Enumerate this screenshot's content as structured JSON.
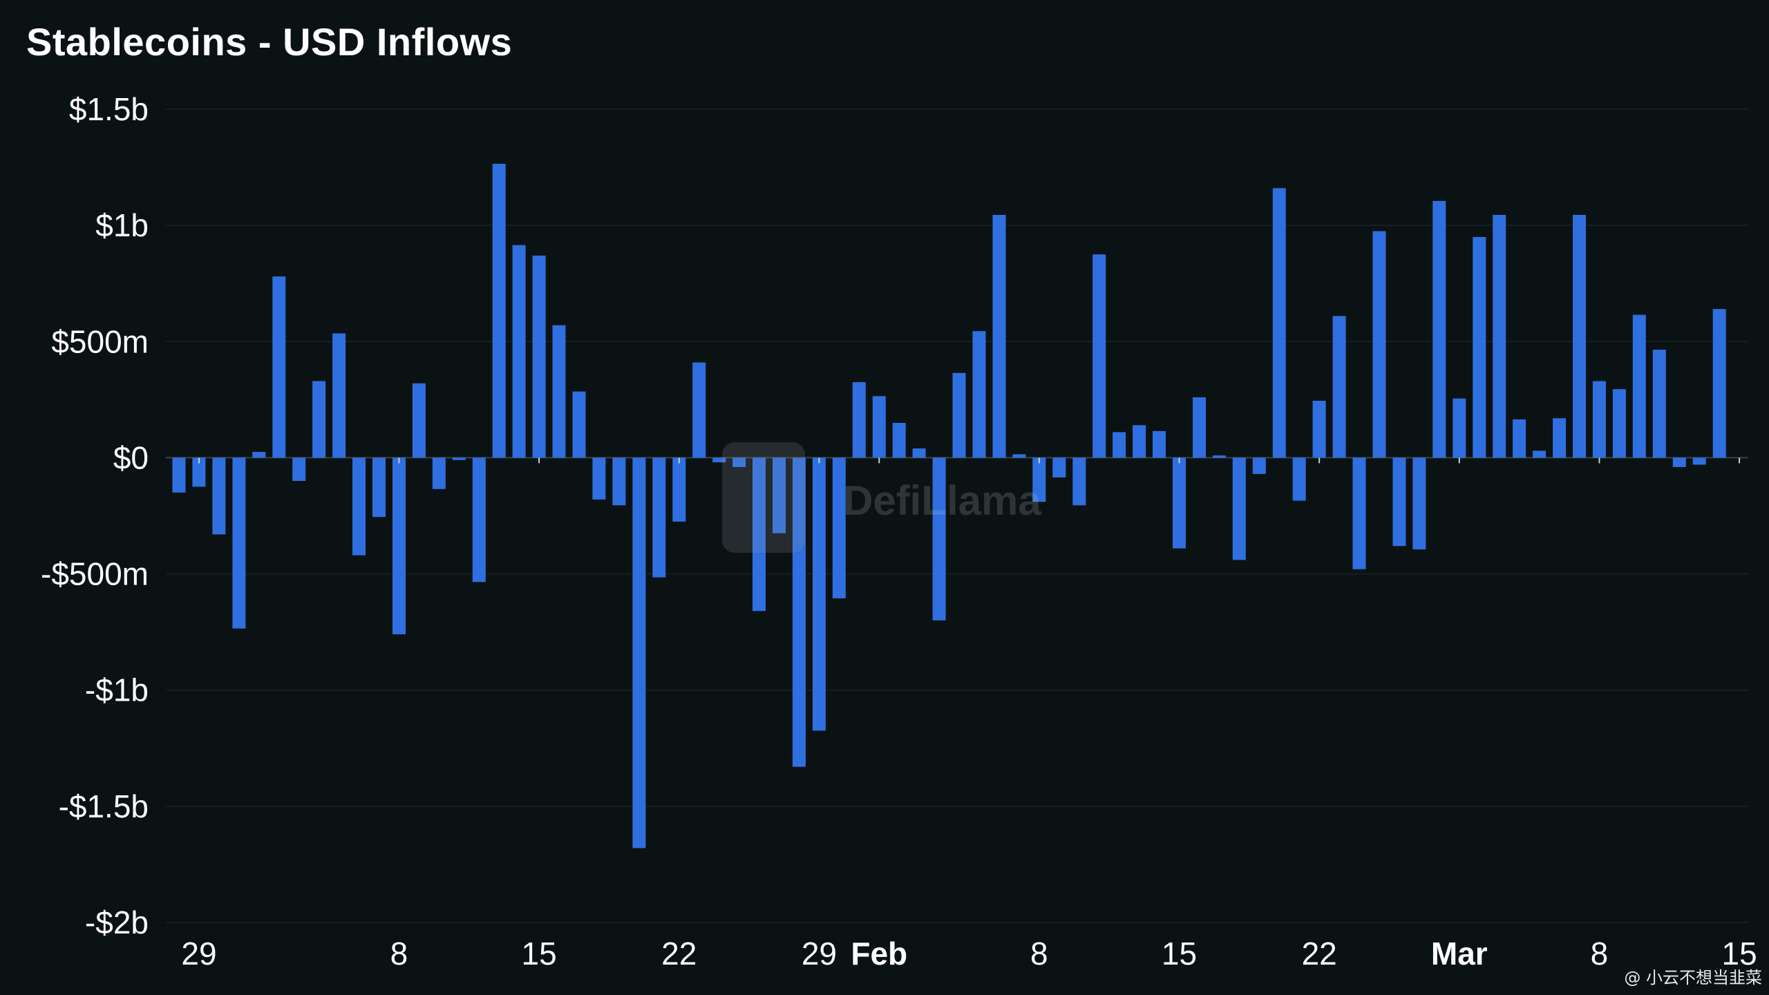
{
  "chart_data": {
    "type": "bar",
    "title": "Stablecoins - USD Inflows",
    "xlabel": "",
    "ylabel": "",
    "ylim": [
      -2000,
      1500
    ],
    "unit": "million USD",
    "yticks": [
      {
        "value": 1500,
        "label": "$1.5b"
      },
      {
        "value": 1000,
        "label": "$1b"
      },
      {
        "value": 500,
        "label": "$500m"
      },
      {
        "value": 0,
        "label": "$0"
      },
      {
        "value": -500,
        "label": "-$500m"
      },
      {
        "value": -1000,
        "label": "-$1b"
      },
      {
        "value": -1500,
        "label": "-$1.5b"
      },
      {
        "value": -2000,
        "label": "-$2b"
      }
    ],
    "xticks": [
      {
        "label": "29",
        "index": 1,
        "month": false
      },
      {
        "label": "8",
        "index": 11,
        "month": false
      },
      {
        "label": "15",
        "index": 18,
        "month": false
      },
      {
        "label": "22",
        "index": 25,
        "month": false
      },
      {
        "label": "29",
        "index": 32,
        "month": false
      },
      {
        "label": "Feb",
        "index": 35,
        "month": true
      },
      {
        "label": "8",
        "index": 43,
        "month": false
      },
      {
        "label": "15",
        "index": 50,
        "month": false
      },
      {
        "label": "22",
        "index": 57,
        "month": false
      },
      {
        "label": "Mar",
        "index": 64,
        "month": true
      },
      {
        "label": "8",
        "index": 71,
        "month": false
      },
      {
        "label": "15",
        "index": 78,
        "month": false
      }
    ],
    "bar_color": "#2f6fe0",
    "series": [
      {
        "values": [
          -150,
          -125,
          -330,
          -735,
          25,
          780,
          -100,
          330,
          535,
          -420,
          -255,
          -760,
          320,
          -135,
          -10,
          -535,
          1265,
          915,
          870,
          570,
          285,
          -180,
          -205,
          -1680,
          -515,
          -275,
          410,
          -20,
          -40,
          -660,
          -325,
          -1330,
          -1175,
          -605,
          325,
          265,
          150,
          40,
          -700,
          365,
          545,
          1045,
          15,
          -190,
          -85,
          -205,
          875,
          110,
          140,
          115,
          -390,
          260,
          10,
          -440,
          -70,
          1160,
          -185,
          245,
          610,
          -480,
          975,
          -380,
          -395,
          1105,
          255,
          950,
          1045,
          165,
          30,
          170,
          1045,
          330,
          295,
          615,
          465,
          -40,
          -30,
          640
        ]
      }
    ]
  },
  "watermark": "DefiLlama",
  "credit": "@ 小云不想当韭菜"
}
